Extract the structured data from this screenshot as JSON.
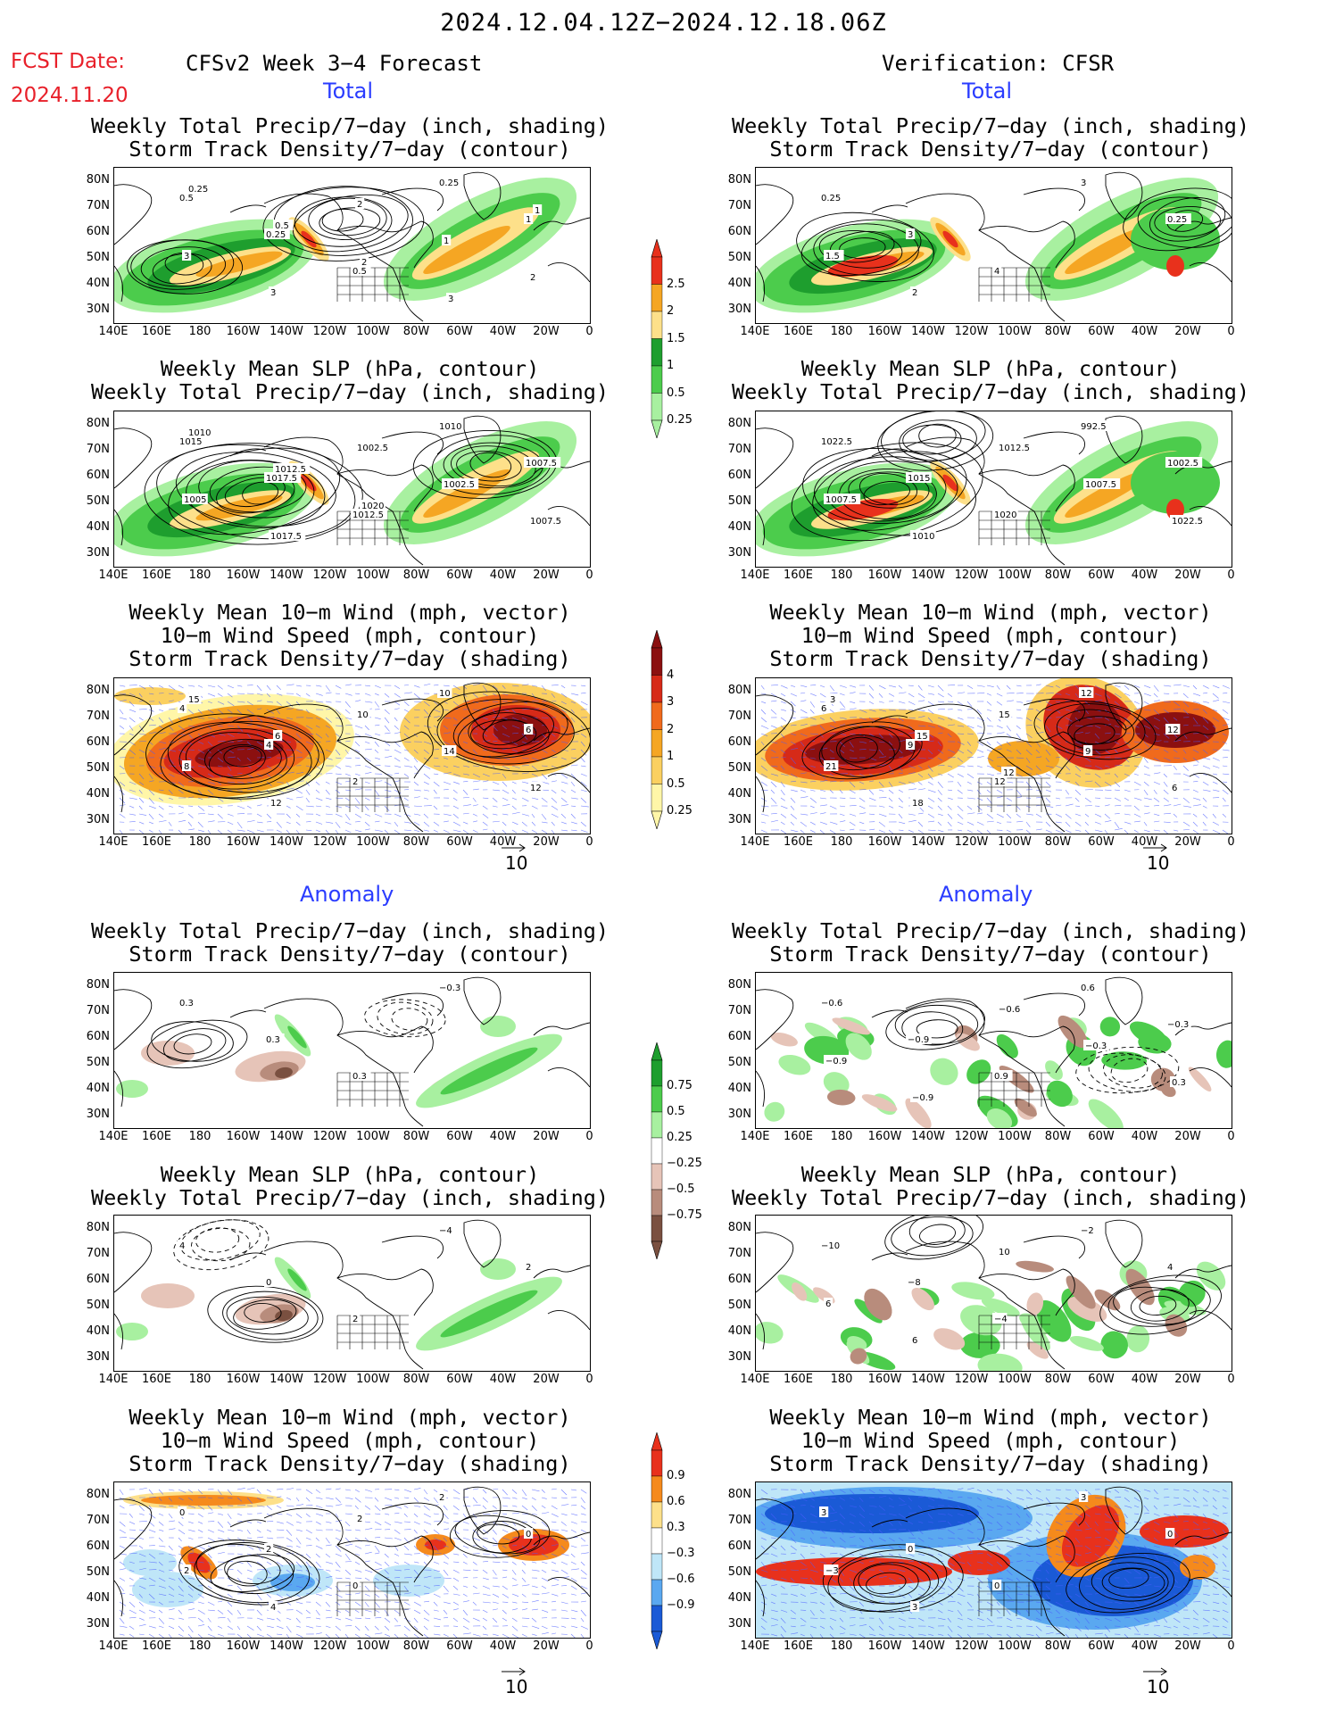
{
  "main_title": "2024.12.04.12Z−2024.12.18.06Z",
  "fcst_label": "FCST Date:",
  "fcst_date": "2024.11.20",
  "left_header": "CFSv2 Week 3−4 Forecast",
  "right_header": "Verification: CFSR",
  "section_total": "Total",
  "section_anomaly": "Anomaly",
  "titles": {
    "precip_storm_1": "Weekly Total Precip/7−day (inch, shading)",
    "precip_storm_2": "Storm Track Density/7−day (contour)",
    "slp_1": "Weekly Mean SLP (hPa, contour)",
    "slp_2": "Weekly Total Precip/7−day (inch, shading)",
    "wind_1": "Weekly Mean 10−m Wind (mph, vector)",
    "wind_2": "10−m Wind Speed (mph, contour)",
    "wind_3": "Storm Track Density/7−day (shading)"
  },
  "lat_labels": [
    "80N",
    "70N",
    "60N",
    "50N",
    "40N",
    "30N"
  ],
  "lon_labels": [
    "140E",
    "160E",
    "180",
    "160W",
    "140W",
    "120W",
    "100W",
    "80W",
    "60W",
    "40W",
    "20W",
    "0"
  ],
  "vector_ref": "10",
  "colorbars": {
    "precip_total": {
      "labels": [
        "2.5",
        "2",
        "1.5",
        "1",
        "0.5",
        "0.25"
      ],
      "colors": [
        "#e8311c",
        "#f5a623",
        "#fde08a",
        "#1e9e2e",
        "#4ccc4c",
        "#a8f0a0"
      ]
    },
    "storm_total": {
      "labels": [
        "4",
        "3",
        "2",
        "1",
        "0.5",
        "0.25"
      ],
      "colors": [
        "#8b1010",
        "#d62a18",
        "#f06a1c",
        "#f5a623",
        "#fbd060",
        "#fff6a8"
      ]
    },
    "precip_anom": {
      "labels": [
        "0.75",
        "0.5",
        "0.25",
        "−0.25",
        "−0.5",
        "−0.75"
      ],
      "colors": [
        "#1e9e2e",
        "#4ccc4c",
        "#a8f0a0",
        "#ffffff",
        "#e6c4b8",
        "#b88c7c",
        "#7a5040"
      ]
    },
    "storm_anom": {
      "labels": [
        "0.9",
        "0.6",
        "0.3",
        "−0.3",
        "−0.6",
        "−0.9"
      ],
      "colors": [
        "#e8311c",
        "#f58a1c",
        "#fde08a",
        "#ffffff",
        "#bfe6f8",
        "#5aa8f0",
        "#1a5ad6"
      ]
    }
  },
  "contour_labels": {
    "p1L": [
      "0.5",
      "0.25",
      "0.5",
      "0.25",
      "1",
      "3",
      "3",
      "2",
      "1",
      "2",
      "0.25",
      "0.5",
      "2",
      "3",
      "1"
    ],
    "p1R": [
      "0.25",
      "3",
      "4",
      "3",
      "0.25",
      "1.5",
      "2"
    ],
    "p2L": [
      "1015",
      "1017.5",
      "1012.5",
      "1010",
      "1007.5",
      "1005",
      "1017.5",
      "1002.5",
      "1002.5",
      "1007.5",
      "1010",
      "1012.5",
      "1020"
    ],
    "p2R": [
      "1022.5",
      "1015",
      "1020",
      "992.5",
      "1002.5",
      "1007.5",
      "1010",
      "1012.5",
      "1007.5",
      "1022.5"
    ],
    "p3L": [
      "4",
      "4",
      "2",
      "10",
      "6",
      "8",
      "12",
      "10",
      "14",
      "12",
      "15",
      "6"
    ],
    "p3R": [
      "6",
      "9",
      "12",
      "12",
      "12",
      "21",
      "18",
      "15",
      "9",
      "6",
      "3",
      "15",
      "12"
    ],
    "p4L": [
      "0.3",
      "0.3",
      "0.3",
      "−0.3"
    ],
    "p4R": [
      "−0.6",
      "−0.9",
      "0.9",
      "0.6",
      "−0.3",
      "−0.9",
      "−0.9",
      "−0.6",
      "−0.3",
      "0.3"
    ],
    "p5L": [
      "4",
      "0",
      "2",
      "−4",
      "2"
    ],
    "p5R": [
      "−10",
      "−8",
      "−4",
      "−2",
      "4",
      "6",
      "6",
      "10"
    ],
    "p6L": [
      "0",
      "2",
      "0",
      "2",
      "0",
      "2",
      "4",
      "2"
    ],
    "p6R": [
      "3",
      "0",
      "0",
      "3",
      "0",
      "−3",
      "3"
    ]
  }
}
